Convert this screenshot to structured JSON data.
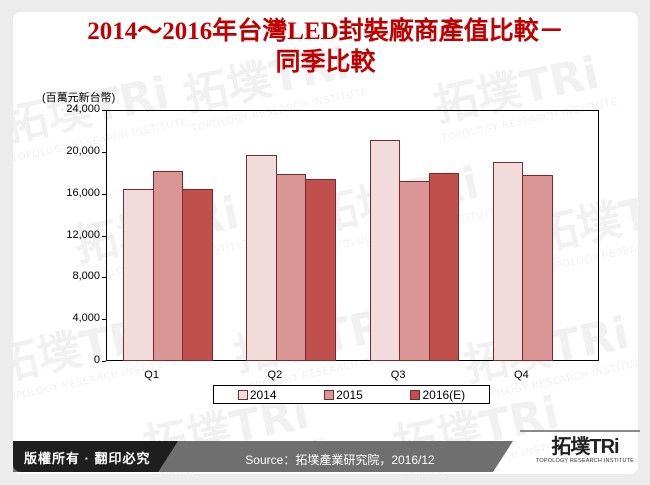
{
  "title": {
    "line1": "2014～2016年台灣LED封裝廠商產值比較－",
    "line2": "同季比較"
  },
  "unit_label": "(百萬元新台幣)",
  "legend": [
    {
      "label": "2014",
      "color": "#f2dcdb"
    },
    {
      "label": "2015",
      "color": "#d99694"
    },
    {
      "label": "2016(E)",
      "color": "#c0504d"
    }
  ],
  "footer": {
    "copyright": "版權所有 · 翻印必究",
    "source": "Source：拓墣產業研究院，2016/12",
    "logo_main": "拓墣TRi",
    "logo_sub": "TOPOLOGY RESEARCH INSTITUTE"
  },
  "watermark": {
    "text": "拓墣TRi",
    "sub": "TOPOLOGY RESEARCH INSTITUTE"
  },
  "chart_data": {
    "type": "bar",
    "title": "2014～2016年台灣LED封裝廠商產值比較－同季比較",
    "xlabel": "",
    "ylabel": "(百萬元新台幣)",
    "ylim": [
      0,
      24000
    ],
    "yticks": [
      "0",
      "4,000",
      "8,000",
      "12,000",
      "16,000",
      "20,000",
      "24,000"
    ],
    "categories": [
      "Q1",
      "Q2",
      "Q3",
      "Q4"
    ],
    "series": [
      {
        "name": "2014",
        "color": "#f2dcdb",
        "values": [
          16400,
          19700,
          21100,
          19000
        ]
      },
      {
        "name": "2015",
        "color": "#d99694",
        "values": [
          18200,
          17900,
          17200,
          17800
        ]
      },
      {
        "name": "2016(E)",
        "color": "#c0504d",
        "values": [
          16400,
          17400,
          18000,
          null
        ]
      }
    ],
    "grid": false,
    "legend_position": "bottom"
  }
}
